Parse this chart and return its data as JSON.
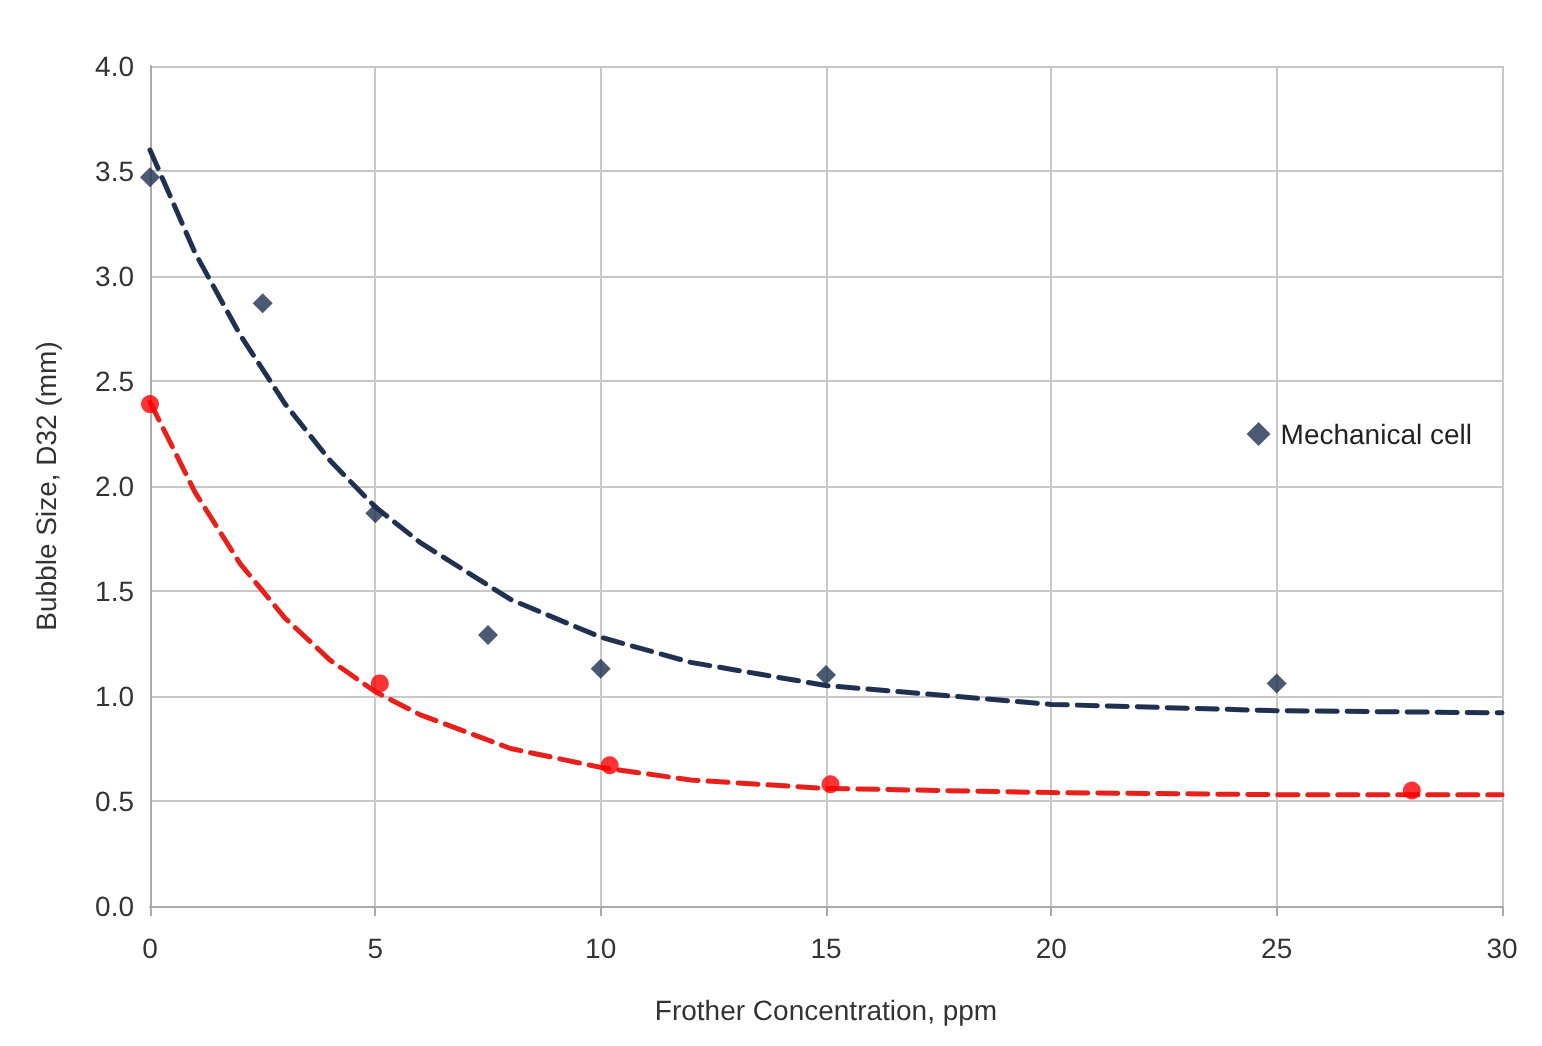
{
  "chart_data": {
    "type": "scatter",
    "xlabel": "Frother Concentration, ppm",
    "ylabel": "Bubble Size, D32 (mm)",
    "xlim": [
      0,
      30
    ],
    "xticks": [
      0,
      5,
      10,
      15,
      20,
      25,
      30
    ],
    "ylim": [
      0,
      4
    ],
    "yticks": [
      {
        "value": 0,
        "label": "0.0"
      },
      {
        "value": 0.5,
        "label": "0.5"
      },
      {
        "value": 1,
        "label": "1.0"
      },
      {
        "value": 1.5,
        "label": "1.5"
      },
      {
        "value": 2,
        "label": "2.0"
      },
      {
        "value": 2.5,
        "label": "2.5"
      },
      {
        "value": 3,
        "label": "3.0"
      },
      {
        "value": 3.5,
        "label": "3.5"
      },
      {
        "value": 4,
        "label": "4.0"
      }
    ],
    "grid": true,
    "legend": "right",
    "series": [
      {
        "type": "line",
        "line_style": "dashed",
        "marker": "none",
        "color": "#1f3050",
        "x": [
          0,
          1,
          2,
          3,
          4,
          5,
          6,
          8,
          10,
          12,
          15,
          20,
          25,
          30
        ],
        "values": [
          3.6,
          3.11,
          2.72,
          2.39,
          2.12,
          1.9,
          1.73,
          1.46,
          1.28,
          1.16,
          1.05,
          0.96,
          0.93,
          0.92
        ]
      },
      {
        "type": "line",
        "line_style": "dashed",
        "marker": "none",
        "color": "#e8201c",
        "x": [
          0,
          1,
          2,
          3,
          4,
          5,
          6,
          8,
          10,
          12,
          15,
          20,
          25,
          30
        ],
        "values": [
          2.4,
          1.97,
          1.63,
          1.37,
          1.17,
          1.02,
          0.91,
          0.75,
          0.66,
          0.6,
          0.56,
          0.54,
          0.53,
          0.53
        ]
      },
      {
        "name": "Mechanical cell",
        "marker": "diamond",
        "color": "#1f3050",
        "x": [
          0,
          2.5,
          5,
          7.5,
          10,
          15,
          25
        ],
        "values": [
          3.47,
          2.87,
          1.87,
          1.29,
          1.13,
          1.1,
          1.06
        ]
      },
      {
        "marker": "circle",
        "color": "#ff0000",
        "x": [
          0,
          5.1,
          10.2,
          15.1,
          28
        ],
        "values": [
          2.39,
          1.06,
          0.67,
          0.58,
          0.55
        ]
      }
    ]
  }
}
